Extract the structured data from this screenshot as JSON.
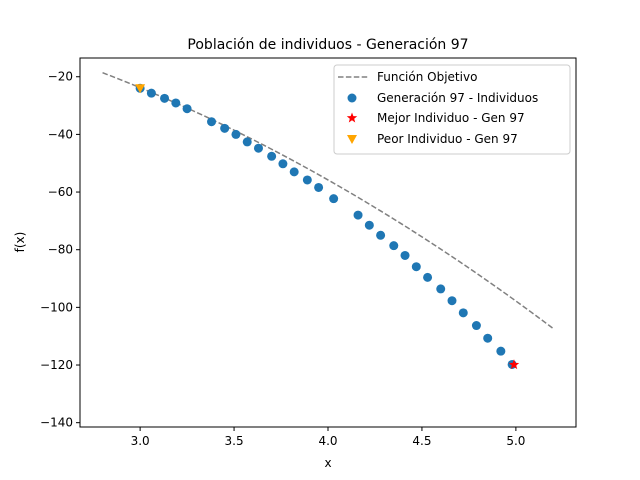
{
  "chart_data": {
    "type": "scatter",
    "title": "Población de individuos - Generación 97",
    "xlabel": "x",
    "ylabel": "f(x)",
    "xlim": [
      2.68,
      5.32
    ],
    "ylim": [
      -141.5,
      -13.5
    ],
    "xticks": [
      3.0,
      3.5,
      4.0,
      4.5,
      5.0
    ],
    "xtick_labels": [
      "3.0",
      "3.5",
      "4.0",
      "4.5",
      "5.0"
    ],
    "yticks": [
      -20,
      -40,
      -60,
      -80,
      -100,
      -120,
      -140
    ],
    "ytick_labels": [
      "−20",
      "−40",
      "−60",
      "−80",
      "−100",
      "−120",
      "−140"
    ],
    "grid": false,
    "legend_position": "top-right",
    "objective": {
      "name": "Función Objetivo",
      "color": "#808080",
      "x": [
        2.8,
        3.0,
        3.2,
        3.4,
        3.6,
        3.8,
        4.0,
        4.2,
        4.4,
        4.6,
        4.8,
        5.0,
        5.2
      ],
      "y": [
        -18.6,
        -23.8,
        -29.4,
        -35.4,
        -41.8,
        -48.6,
        -55.8,
        -63.4,
        -71.4,
        -79.8,
        -88.6,
        -97.8,
        -107.4
      ]
    },
    "series": [
      {
        "name": "Generación 97 - Individuos",
        "color": "#1f77b4",
        "marker": "circle",
        "x": [
          3.0,
          3.06,
          3.13,
          3.19,
          3.25,
          3.38,
          3.45,
          3.51,
          3.57,
          3.63,
          3.7,
          3.76,
          3.82,
          3.89,
          3.95,
          4.03,
          4.16,
          4.22,
          4.28,
          4.35,
          4.41,
          4.47,
          4.53,
          4.6,
          4.66,
          4.72,
          4.79,
          4.85,
          4.92,
          4.98
        ],
        "y": [
          -24.0,
          -25.7,
          -27.5,
          -29.1,
          -31.1,
          -35.6,
          -37.9,
          -40.0,
          -42.6,
          -44.8,
          -47.6,
          -50.2,
          -53.0,
          -55.8,
          -58.4,
          -62.3,
          -68.0,
          -71.5,
          -75.0,
          -78.6,
          -82.0,
          -85.9,
          -89.6,
          -93.6,
          -97.7,
          -101.9,
          -106.3,
          -110.7,
          -115.2,
          -119.8
        ]
      },
      {
        "name": "Mejor Individuo - Gen 97",
        "color": "#ff0000",
        "marker": "star",
        "x": [
          4.99
        ],
        "y": [
          -119.9
        ]
      },
      {
        "name": "Peor Individuo - Gen 97",
        "color": "#ffa500",
        "marker": "triangle-down",
        "x": [
          3.0
        ],
        "y": [
          -24.0
        ]
      }
    ]
  }
}
